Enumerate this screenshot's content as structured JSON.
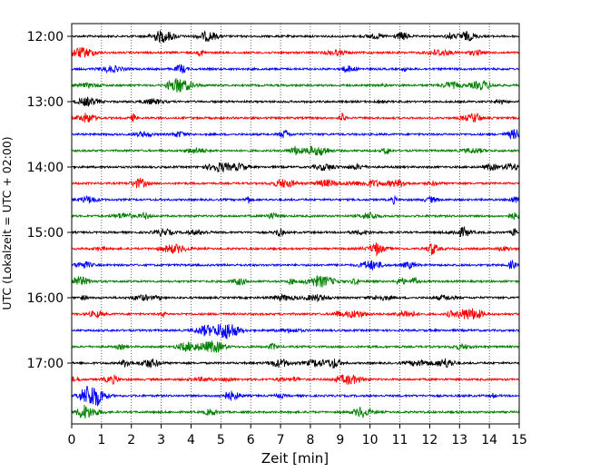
{
  "chart_data": {
    "type": "line",
    "title": "",
    "xlabel": "Zeit  [min]",
    "ylabel": "UTC (Lokalzeit = UTC + 02:00)",
    "xlim": [
      0,
      15
    ],
    "x_ticks": [
      "0",
      "1",
      "2",
      "3",
      "4",
      "5",
      "6",
      "7",
      "8",
      "9",
      "10",
      "11",
      "12",
      "13",
      "14",
      "15"
    ],
    "y_ticks": [
      "12:00",
      "13:00",
      "14:00",
      "15:00",
      "16:00",
      "17:00"
    ],
    "grid": "vertical dotted lines at each minute",
    "trace_interval_minutes": 15,
    "trace_start_times": [
      "12:00",
      "12:15",
      "12:30",
      "12:45",
      "13:00",
      "13:15",
      "13:30",
      "13:45",
      "14:00",
      "14:15",
      "14:30",
      "14:45",
      "15:00",
      "15:15",
      "15:30",
      "15:45",
      "16:00",
      "16:15",
      "16:30",
      "16:45",
      "17:00",
      "17:15",
      "17:30",
      "17:45"
    ],
    "trace_colors": [
      "#000000",
      "#ff0000",
      "#0000ff",
      "#007f00"
    ]
  }
}
